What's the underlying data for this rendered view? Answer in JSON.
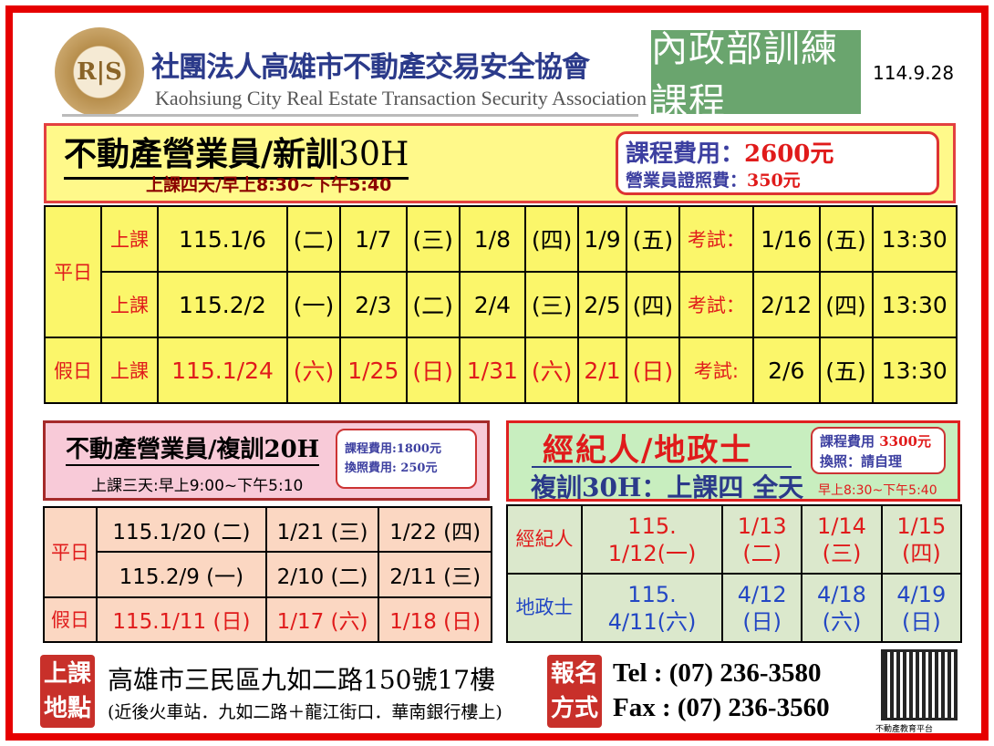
{
  "header": {
    "logo_text": "R|S",
    "org_cn": "社團法人高雄市不動產交易安全協會",
    "org_en": "Kaohsiung City Real Estate Transaction Security Association",
    "badge": "內政部訓練課程",
    "date": "114.9.28"
  },
  "new_course": {
    "title": "不動產營業員/新訓",
    "hours": "30H",
    "subtitle": "上課四天/早上8:30~下午5:40",
    "fee_label": "課程費用：",
    "fee_value": "2600元",
    "license_label": "營業員證照費：",
    "license_value": "350元",
    "rows": [
      {
        "group": "平日",
        "type": "上課",
        "cells": [
          "115.1/6",
          "(二)",
          "1/7",
          "(三)",
          "1/8",
          "(四)",
          "1/9",
          "(五)"
        ],
        "exam_label": "考試：",
        "exam": [
          "1/16",
          "(五)",
          "13:30"
        ]
      },
      {
        "type": "上課",
        "cells": [
          "115.2/2",
          "(一)",
          "2/3",
          "(二)",
          "2/4",
          "(三)",
          "2/5",
          "(四)"
        ],
        "exam_label": "考試：",
        "exam": [
          "2/12",
          "(四)",
          "13:30"
        ]
      },
      {
        "group": "假日",
        "type": "上課",
        "cells": [
          "115.1/24",
          "(六)",
          "1/25",
          "(日)",
          "1/31",
          "(六)",
          "2/1",
          "(日)"
        ],
        "exam_label": "考試:",
        "exam": [
          "2/6",
          "(五)",
          "13:30"
        ],
        "holiday": true
      }
    ]
  },
  "refresher": {
    "title": "不動產營業員/複訓20H",
    "subtitle": "上課三天:早上9:00~下午5:10",
    "fee": "課程費用:1800元",
    "license": "換照費用:  250元",
    "rows": [
      {
        "group": "平日",
        "cells": [
          "115.1/20 (二)",
          "1/21 (三)",
          "1/22 (四)"
        ]
      },
      {
        "cells": [
          "115.2/9  (一)",
          "2/10 (二)",
          "2/11 (三)"
        ]
      },
      {
        "group": "假日",
        "cells": [
          "115.1/11 (日)",
          "1/17 (六)",
          "1/18 (日)"
        ],
        "holiday": true
      }
    ]
  },
  "agent": {
    "title": "經紀人/地政士",
    "subtitle": "複訓30H：上課四 全天",
    "fee_label": "課程費用",
    "fee_value": "3300元",
    "license": "換照：請自理",
    "time": "早上8:30~下午5:40",
    "rows": [
      {
        "group": "經紀人",
        "cells": [
          "115.\n1/12(一)",
          "1/13\n(二)",
          "1/14\n(三)",
          "1/15\n(四)"
        ],
        "color": "#e01b1b"
      },
      {
        "group": "地政士",
        "cells": [
          "115.\n4/11(六)",
          "4/12\n(日)",
          "4/18\n(六)",
          "4/19\n(日)"
        ],
        "color": "#2347c4"
      }
    ]
  },
  "footer": {
    "location_tag": "上課\n地點",
    "address": "高雄市三民區九如二路150號17樓",
    "address_note": "(近後火車站．九如二路＋龍江街口．華南銀行樓上)",
    "signup_tag": "報名\n方式",
    "tel": "Tel : (07) 236-3580",
    "fax": "Fax : (07) 236-3560",
    "qr_caption": "不動產教育平台"
  },
  "colors": {
    "frame": "#e60000",
    "main_table": "#fbf66a",
    "holiday_text": "#e01b1b"
  }
}
